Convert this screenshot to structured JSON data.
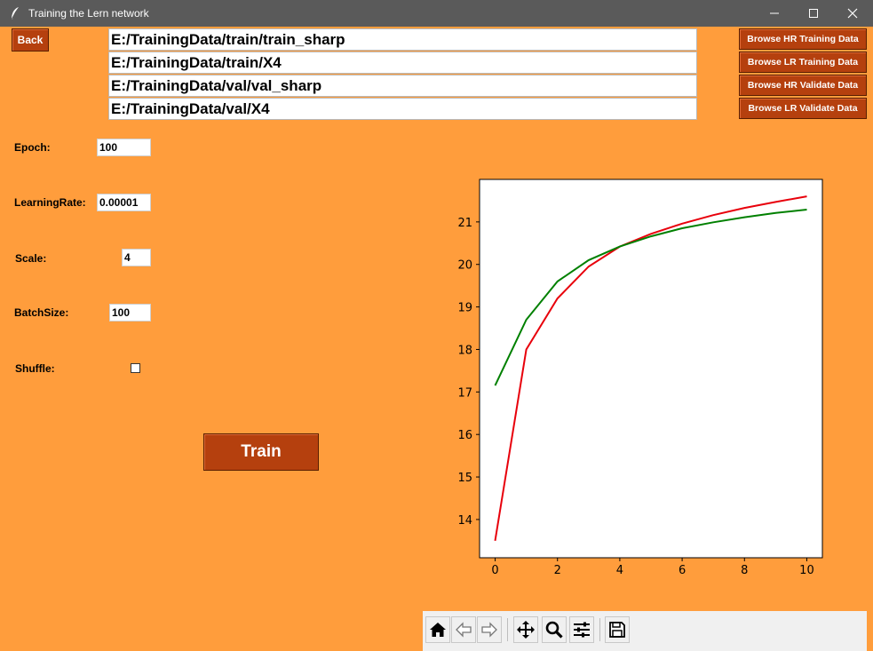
{
  "window": {
    "title": "Training the Lern network"
  },
  "buttons": {
    "back": "Back",
    "browse_hr_train": "Browse HR Training Data",
    "browse_lr_train": "Browse LR Training Data",
    "browse_hr_val": "Browse HR Validate Data",
    "browse_lr_val": "Browse LR Validate Data",
    "train": "Train"
  },
  "paths": {
    "hr_train": "E:/TrainingData/train/train_sharp",
    "lr_train": "E:/TrainingData/train/X4",
    "hr_val": "E:/TrainingData/val/val_sharp",
    "lr_val": "E:/TrainingData/val/X4"
  },
  "params": {
    "epoch_label": "Epoch:",
    "epoch_value": "100",
    "lr_label": "LearningRate:",
    "lr_value": "0.00001",
    "scale_label": "Scale:",
    "scale_value": "4",
    "batch_label": "BatchSize:",
    "batch_value": "100",
    "shuffle_label": "Shuffle:",
    "shuffle_checked": false
  },
  "toolbar": {
    "icons": [
      "home-icon",
      "back-arrow-icon",
      "forward-arrow-icon",
      "pan-icon",
      "zoom-icon",
      "configure-icon",
      "save-icon"
    ]
  },
  "colors": {
    "background": "#ff9d3c",
    "button": "#b5400e",
    "red_series": "#e8000b",
    "green_series": "#008000"
  },
  "chart_data": {
    "type": "line",
    "title": "",
    "xlabel": "",
    "ylabel": "",
    "xlim": [
      -0.5,
      10.5
    ],
    "ylim": [
      13.1,
      22.0
    ],
    "xticks": [
      0,
      2,
      4,
      6,
      8,
      10
    ],
    "yticks": [
      14,
      15,
      16,
      17,
      18,
      19,
      20,
      21
    ],
    "grid": false,
    "series": [
      {
        "color": "#e8000b",
        "x": [
          0,
          1,
          2,
          3,
          4,
          5,
          6,
          7,
          8,
          9,
          10
        ],
        "y": [
          13.5,
          18.0,
          19.2,
          19.95,
          20.42,
          20.72,
          20.96,
          21.16,
          21.33,
          21.47,
          21.6
        ]
      },
      {
        "color": "#008000",
        "x": [
          0,
          1,
          2,
          3,
          4,
          5,
          6,
          7,
          8,
          9,
          10
        ],
        "y": [
          17.15,
          18.7,
          19.6,
          20.1,
          20.42,
          20.66,
          20.85,
          20.99,
          21.11,
          21.21,
          21.29
        ]
      }
    ]
  }
}
